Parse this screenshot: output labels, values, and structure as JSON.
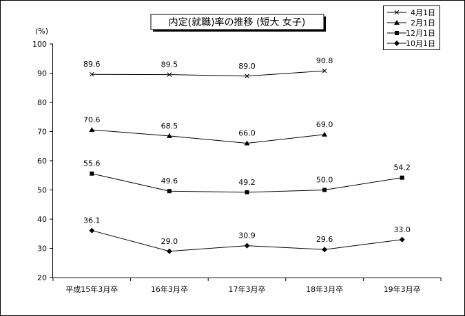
{
  "chart_data": {
    "type": "line",
    "title": "内定(就職)率の推移 (短大 女子)",
    "ylabel": "(%)",
    "ylim": [
      20,
      100
    ],
    "ytick_step": 10,
    "grid": false,
    "legend_position": "top-right",
    "categories": [
      "平成15年3月卒",
      "16年3月卒",
      "17年3月卒",
      "18年3月卒",
      "19年3月卒"
    ],
    "series": [
      {
        "name": "4月1日",
        "marker": "x",
        "values": [
          89.6,
          89.5,
          89.0,
          90.8,
          null
        ],
        "labels": [
          "89.6",
          "89.5",
          "89.0",
          "90.8",
          null
        ]
      },
      {
        "name": "2月1日",
        "marker": "triangle",
        "values": [
          70.6,
          68.5,
          66.0,
          69.0,
          null
        ],
        "labels": [
          "70.6",
          "68.5",
          "66.0",
          "69.0",
          null
        ]
      },
      {
        "name": "12月1日",
        "marker": "square",
        "values": [
          55.6,
          49.6,
          49.2,
          50.0,
          54.2
        ],
        "labels": [
          "55.6",
          "49.6",
          "49.2",
          "50.0",
          "54.2"
        ]
      },
      {
        "name": "10月1日",
        "marker": "diamond",
        "values": [
          36.1,
          29.0,
          30.9,
          29.6,
          33.0
        ],
        "labels": [
          "36.1",
          "29.0",
          "30.9",
          "29.6",
          "33.0"
        ]
      }
    ]
  }
}
